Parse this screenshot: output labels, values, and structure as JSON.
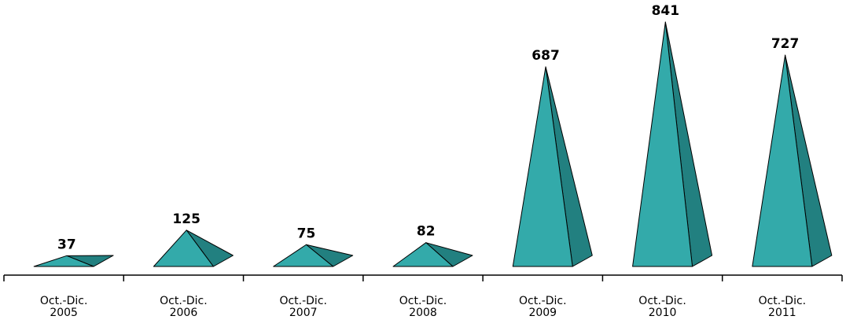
{
  "chart_data": {
    "type": "bar",
    "bar_shape": "pyramid",
    "categories": [
      "Oct.-Dic. 2005",
      "Oct.-Dic. 2006",
      "Oct.-Dic. 2007",
      "Oct.-Dic. 2008",
      "Oct.-Dic. 2009",
      "Oct.-Dic. 2010",
      "Oct.-Dic. 2011"
    ],
    "category_lines": [
      [
        "Oct.-Dic.",
        "2005"
      ],
      [
        "Oct.-Dic.",
        "2006"
      ],
      [
        "Oct.-Dic.",
        "2007"
      ],
      [
        "Oct.-Dic.",
        "2008"
      ],
      [
        "Oct.-Dic.",
        "2009"
      ],
      [
        "Oct.-Dic.",
        "2010"
      ],
      [
        "Oct.-Dic.",
        "2011"
      ]
    ],
    "values": [
      37,
      125,
      75,
      82,
      687,
      841,
      727
    ],
    "data_labels": [
      "37",
      "125",
      "75",
      "82",
      "687",
      "841",
      "727"
    ],
    "title": "",
    "xlabel": "",
    "ylabel": "",
    "ylim": [
      0,
      841
    ],
    "grid": false,
    "legend": "none",
    "colors": {
      "front_face": "#33AAAA",
      "side_face": "#228080",
      "edge": "#000000",
      "axis": "#000000"
    }
  }
}
